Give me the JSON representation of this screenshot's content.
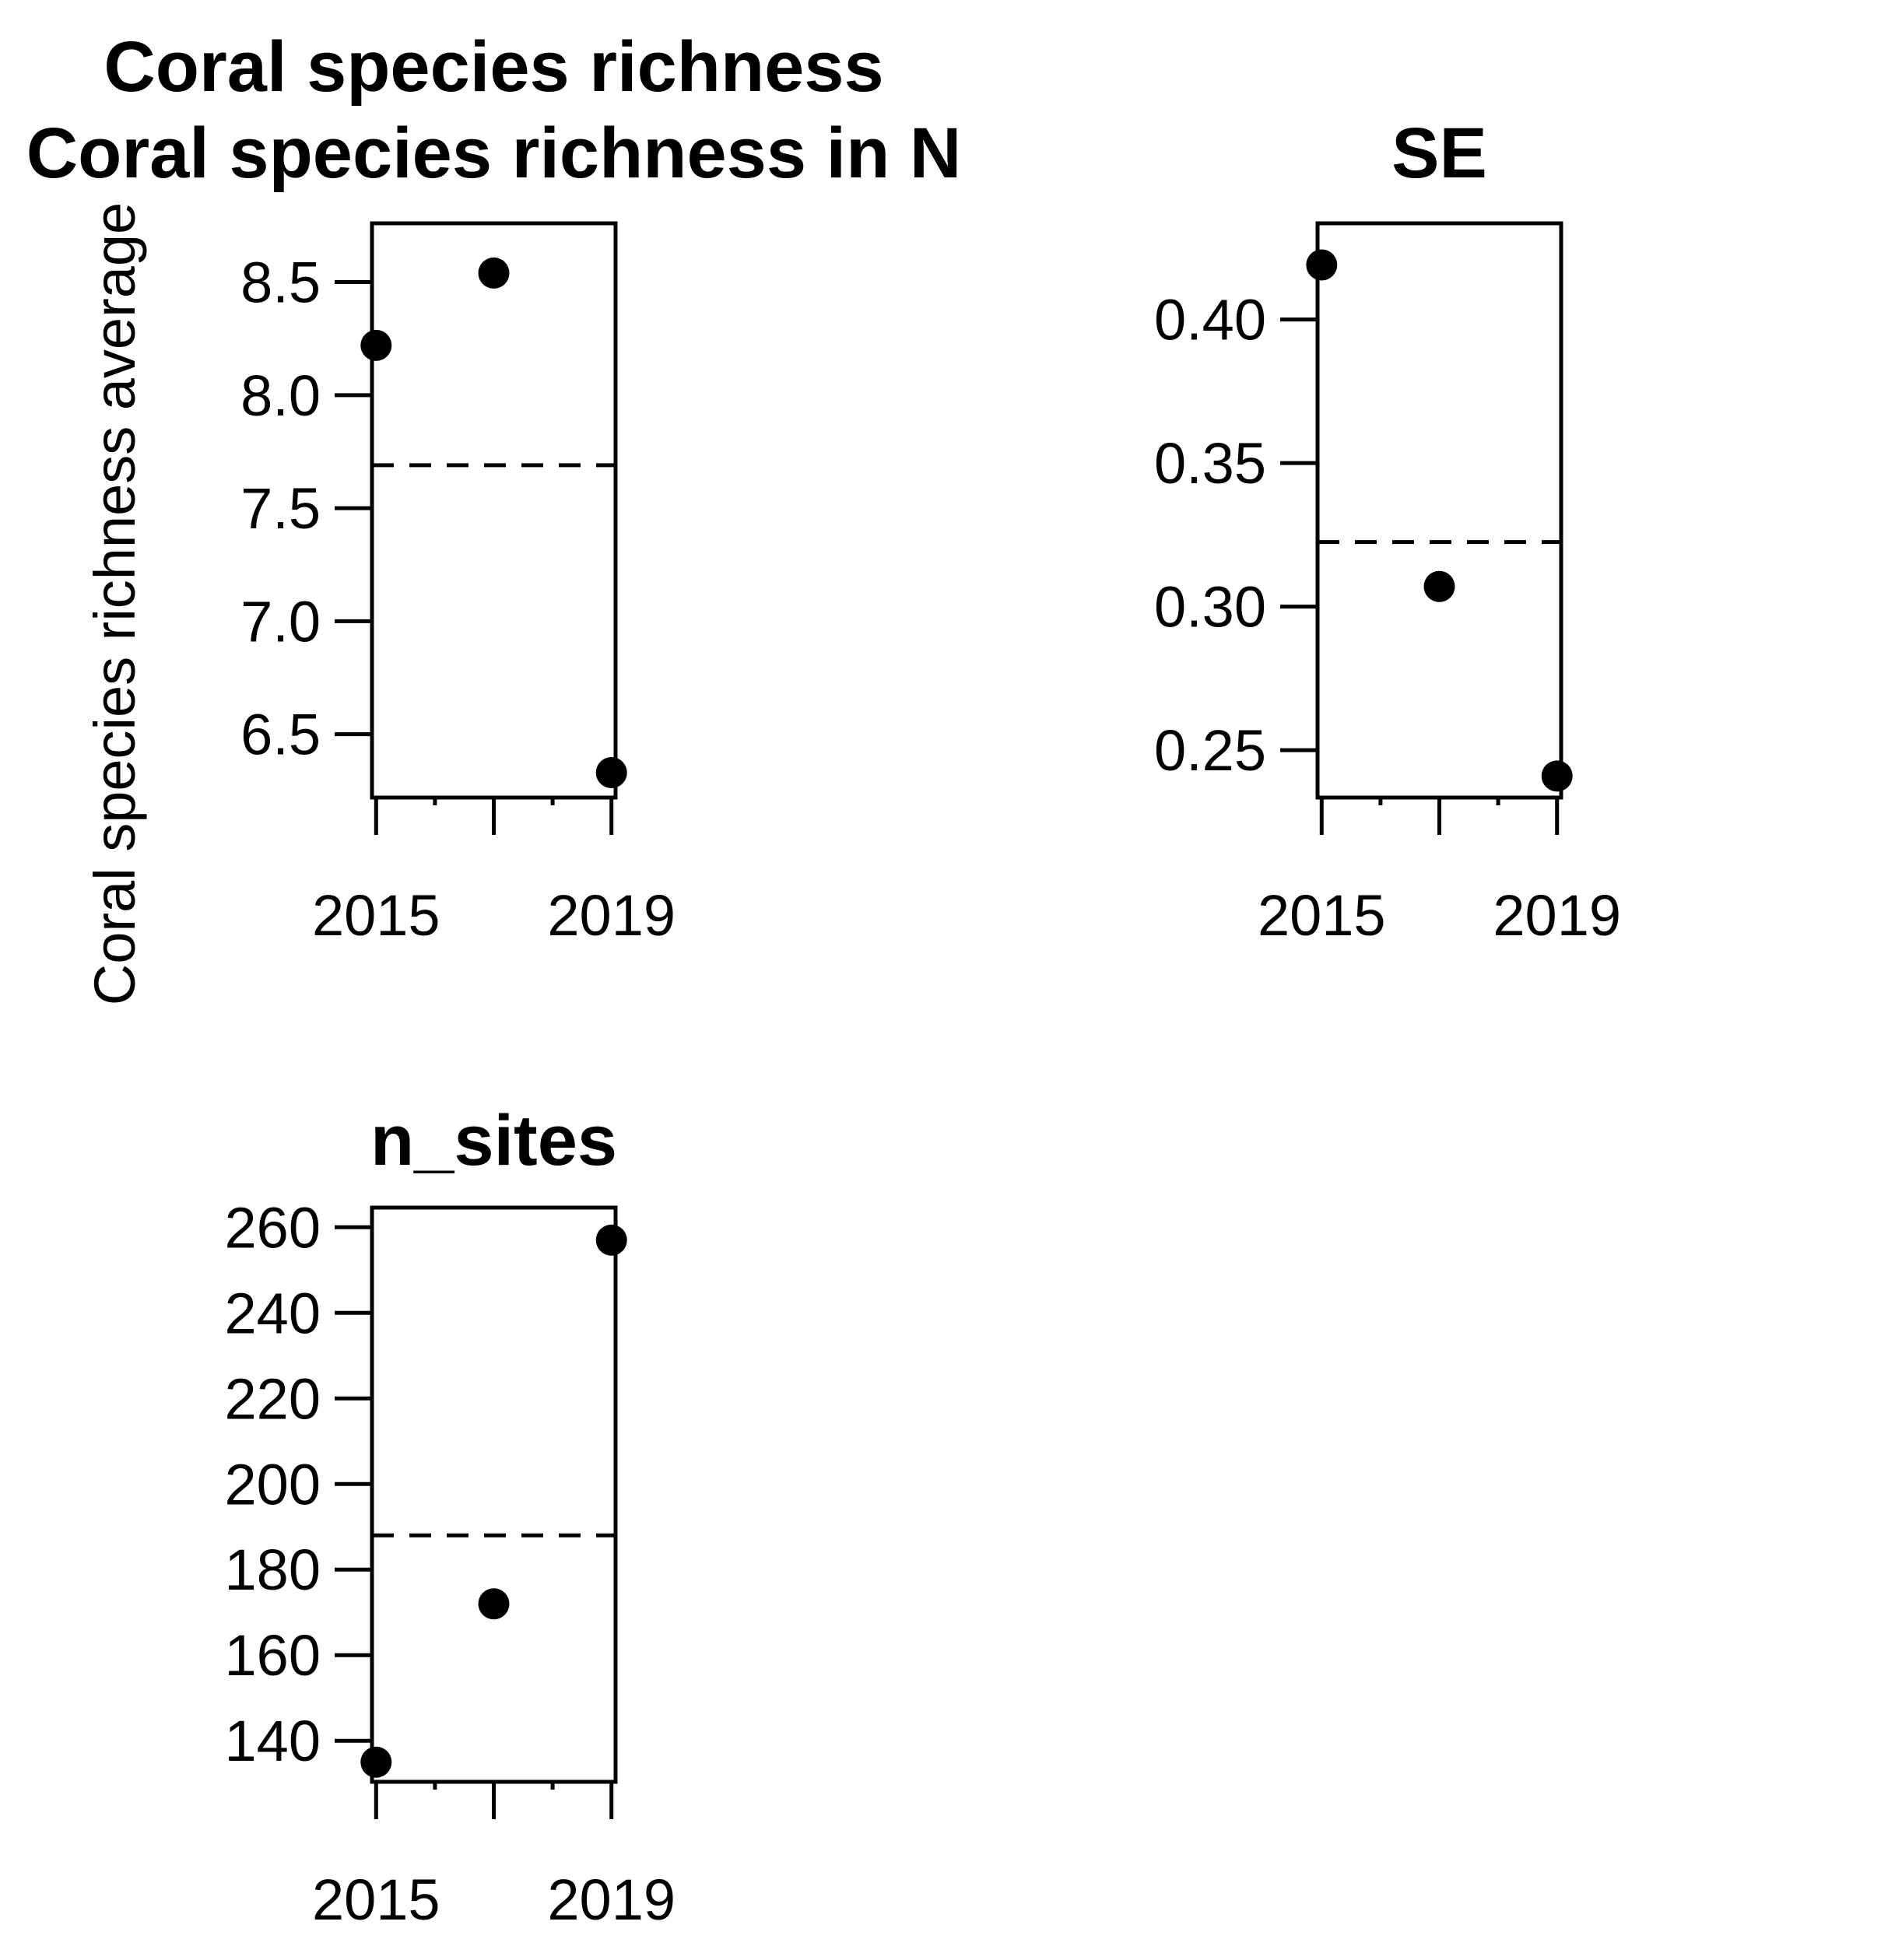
{
  "chart_data": [
    {
      "type": "scatter",
      "title_lines": [
        "Coral species richness",
        "Coral species richness in N"
      ],
      "ylabel": "Coral species richness average",
      "x": [
        2015,
        2017,
        2019
      ],
      "values": [
        8.22,
        8.54,
        6.33
      ],
      "reference_line": {
        "value": 7.69,
        "style": "dashed"
      },
      "xticks": [
        2015,
        2016,
        2017,
        2018,
        2019
      ],
      "xtick_labels": [
        "2015",
        "2019"
      ],
      "yticks": [
        6.5,
        7.0,
        7.5,
        8.0,
        8.5
      ],
      "ytick_labels": [
        "6.5",
        "7.0",
        "7.5",
        "8.0",
        "8.5"
      ],
      "xlim": [
        2014.93,
        2019.07
      ],
      "ylim": [
        6.22,
        8.76
      ]
    },
    {
      "type": "scatter",
      "title_lines": [
        "SE"
      ],
      "ylabel": "",
      "x": [
        2015,
        2017,
        2019
      ],
      "values": [
        0.419,
        0.307,
        0.241
      ],
      "reference_line": {
        "value": 0.3225,
        "style": "dashed"
      },
      "xticks": [
        2015,
        2016,
        2017,
        2018,
        2019
      ],
      "xtick_labels": [
        "2015",
        "2019"
      ],
      "yticks": [
        0.25,
        0.3,
        0.35,
        0.4
      ],
      "ytick_labels": [
        "0.25",
        "0.30",
        "0.35",
        "0.40"
      ],
      "xlim": [
        2014.93,
        2019.07
      ],
      "ylim": [
        0.2335,
        0.4335
      ]
    },
    {
      "type": "scatter",
      "title_lines": [
        "n_sites"
      ],
      "ylabel": "",
      "x": [
        2015,
        2017,
        2019
      ],
      "values": [
        135,
        172,
        257
      ],
      "reference_line": {
        "value": 188,
        "style": "dashed"
      },
      "xticks": [
        2015,
        2016,
        2017,
        2018,
        2019
      ],
      "xtick_labels": [
        "2015",
        "2019"
      ],
      "yticks": [
        140,
        160,
        180,
        200,
        220,
        240,
        260
      ],
      "ytick_labels": [
        "140",
        "160",
        "180",
        "200",
        "220",
        "240",
        "260"
      ],
      "xlim": [
        2014.93,
        2019.07
      ],
      "ylim": [
        130.4,
        264.6
      ]
    }
  ]
}
